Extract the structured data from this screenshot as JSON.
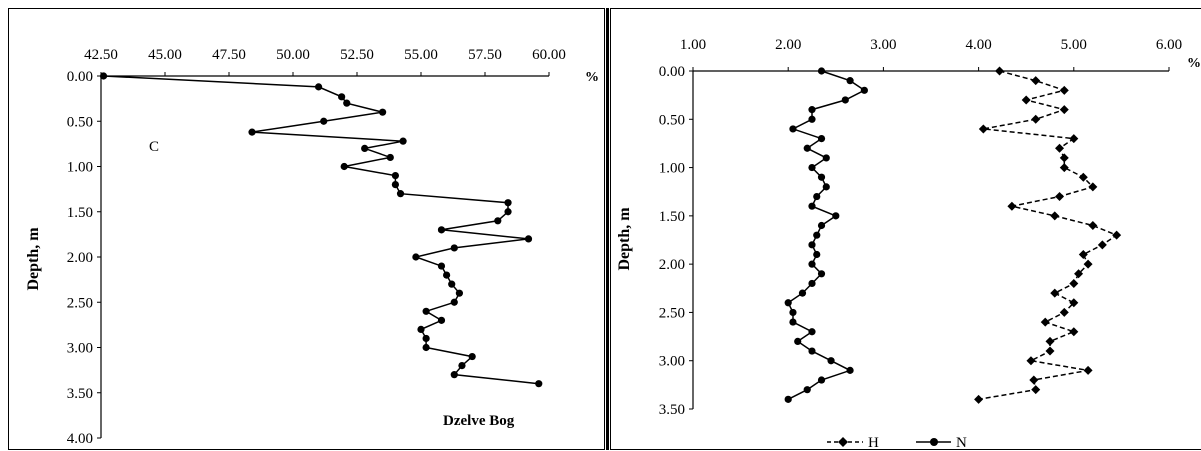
{
  "chart_data": [
    {
      "type": "line",
      "xlim": [
        42.5,
        60.0
      ],
      "ylim": [
        0,
        4.0
      ],
      "y_inverted": true,
      "x_ticks": [
        "42.50",
        "45.00",
        "47.50",
        "50.00",
        "52.50",
        "55.00",
        "57.50",
        "60.00"
      ],
      "y_ticks": [
        "0.00",
        "0.50",
        "1.00",
        "1.50",
        "2.00",
        "2.50",
        "3.00",
        "3.50",
        "4.00"
      ],
      "x_unit": "%",
      "ylabel": "Depth, m",
      "annotations": [
        "C",
        "Dzelve Bog"
      ],
      "series": [
        {
          "style": "solid",
          "marker": "circle",
          "points": [
            {
              "x": 42.6,
              "y": 0.0
            },
            {
              "x": 51.0,
              "y": 0.12
            },
            {
              "x": 51.9,
              "y": 0.23
            },
            {
              "x": 52.1,
              "y": 0.3
            },
            {
              "x": 53.5,
              "y": 0.4
            },
            {
              "x": 51.2,
              "y": 0.5
            },
            {
              "x": 48.4,
              "y": 0.62
            },
            {
              "x": 54.3,
              "y": 0.72
            },
            {
              "x": 52.8,
              "y": 0.8
            },
            {
              "x": 53.8,
              "y": 0.9
            },
            {
              "x": 52.0,
              "y": 1.0
            },
            {
              "x": 54.0,
              "y": 1.1
            },
            {
              "x": 54.0,
              "y": 1.2
            },
            {
              "x": 54.2,
              "y": 1.3
            },
            {
              "x": 58.4,
              "y": 1.4
            },
            {
              "x": 58.4,
              "y": 1.5
            },
            {
              "x": 58.0,
              "y": 1.6
            },
            {
              "x": 55.8,
              "y": 1.7
            },
            {
              "x": 59.2,
              "y": 1.8
            },
            {
              "x": 56.3,
              "y": 1.9
            },
            {
              "x": 54.8,
              "y": 2.0
            },
            {
              "x": 55.8,
              "y": 2.1
            },
            {
              "x": 56.0,
              "y": 2.2
            },
            {
              "x": 56.2,
              "y": 2.3
            },
            {
              "x": 56.5,
              "y": 2.4
            },
            {
              "x": 56.3,
              "y": 2.5
            },
            {
              "x": 55.2,
              "y": 2.6
            },
            {
              "x": 55.8,
              "y": 2.7
            },
            {
              "x": 55.0,
              "y": 2.8
            },
            {
              "x": 55.2,
              "y": 2.9
            },
            {
              "x": 55.2,
              "y": 3.0
            },
            {
              "x": 57.0,
              "y": 3.1
            },
            {
              "x": 56.6,
              "y": 3.2
            },
            {
              "x": 56.3,
              "y": 3.3
            },
            {
              "x": 59.6,
              "y": 3.4
            }
          ]
        }
      ]
    },
    {
      "type": "line",
      "xlim": [
        1.0,
        6.0
      ],
      "ylim": [
        0,
        3.5
      ],
      "y_inverted": true,
      "x_ticks": [
        "1.00",
        "2.00",
        "3.00",
        "4.00",
        "5.00",
        "6.00"
      ],
      "y_ticks": [
        "0.00",
        "0.50",
        "1.00",
        "1.50",
        "2.00",
        "2.50",
        "3.00",
        "3.50"
      ],
      "x_unit": "%",
      "ylabel": "Depth, m",
      "legend": "bottom",
      "series": [
        {
          "name": "H",
          "style": "dashed",
          "marker": "diamond",
          "points": [
            {
              "x": 4.22,
              "y": 0.0
            },
            {
              "x": 4.6,
              "y": 0.1
            },
            {
              "x": 4.9,
              "y": 0.2
            },
            {
              "x": 4.5,
              "y": 0.3
            },
            {
              "x": 4.9,
              "y": 0.4
            },
            {
              "x": 4.6,
              "y": 0.5
            },
            {
              "x": 4.05,
              "y": 0.6
            },
            {
              "x": 5.0,
              "y": 0.7
            },
            {
              "x": 4.85,
              "y": 0.8
            },
            {
              "x": 4.9,
              "y": 0.9
            },
            {
              "x": 4.9,
              "y": 1.0
            },
            {
              "x": 5.1,
              "y": 1.1
            },
            {
              "x": 5.2,
              "y": 1.2
            },
            {
              "x": 4.85,
              "y": 1.3
            },
            {
              "x": 4.35,
              "y": 1.4
            },
            {
              "x": 4.8,
              "y": 1.5
            },
            {
              "x": 5.2,
              "y": 1.6
            },
            {
              "x": 5.45,
              "y": 1.7
            },
            {
              "x": 5.3,
              "y": 1.8
            },
            {
              "x": 5.1,
              "y": 1.9
            },
            {
              "x": 5.15,
              "y": 2.0
            },
            {
              "x": 5.05,
              "y": 2.1
            },
            {
              "x": 5.0,
              "y": 2.2
            },
            {
              "x": 4.8,
              "y": 2.3
            },
            {
              "x": 5.0,
              "y": 2.4
            },
            {
              "x": 4.9,
              "y": 2.5
            },
            {
              "x": 4.7,
              "y": 2.6
            },
            {
              "x": 5.0,
              "y": 2.7
            },
            {
              "x": 4.75,
              "y": 2.8
            },
            {
              "x": 4.75,
              "y": 2.9
            },
            {
              "x": 4.55,
              "y": 3.0
            },
            {
              "x": 5.15,
              "y": 3.1
            },
            {
              "x": 4.58,
              "y": 3.2
            },
            {
              "x": 4.6,
              "y": 3.3
            },
            {
              "x": 4.0,
              "y": 3.4
            }
          ]
        },
        {
          "name": "N",
          "style": "solid",
          "marker": "circle",
          "points": [
            {
              "x": 2.35,
              "y": 0.0
            },
            {
              "x": 2.65,
              "y": 0.1
            },
            {
              "x": 2.8,
              "y": 0.2
            },
            {
              "x": 2.6,
              "y": 0.3
            },
            {
              "x": 2.25,
              "y": 0.4
            },
            {
              "x": 2.25,
              "y": 0.5
            },
            {
              "x": 2.05,
              "y": 0.6
            },
            {
              "x": 2.35,
              "y": 0.7
            },
            {
              "x": 2.2,
              "y": 0.8
            },
            {
              "x": 2.4,
              "y": 0.9
            },
            {
              "x": 2.25,
              "y": 1.0
            },
            {
              "x": 2.35,
              "y": 1.1
            },
            {
              "x": 2.4,
              "y": 1.2
            },
            {
              "x": 2.3,
              "y": 1.3
            },
            {
              "x": 2.25,
              "y": 1.4
            },
            {
              "x": 2.5,
              "y": 1.5
            },
            {
              "x": 2.35,
              "y": 1.6
            },
            {
              "x": 2.3,
              "y": 1.7
            },
            {
              "x": 2.25,
              "y": 1.8
            },
            {
              "x": 2.3,
              "y": 1.9
            },
            {
              "x": 2.25,
              "y": 2.0
            },
            {
              "x": 2.35,
              "y": 2.1
            },
            {
              "x": 2.25,
              "y": 2.2
            },
            {
              "x": 2.15,
              "y": 2.3
            },
            {
              "x": 2.0,
              "y": 2.4
            },
            {
              "x": 2.05,
              "y": 2.5
            },
            {
              "x": 2.05,
              "y": 2.6
            },
            {
              "x": 2.25,
              "y": 2.7
            },
            {
              "x": 2.1,
              "y": 2.8
            },
            {
              "x": 2.25,
              "y": 2.9
            },
            {
              "x": 2.45,
              "y": 3.0
            },
            {
              "x": 2.65,
              "y": 3.1
            },
            {
              "x": 2.35,
              "y": 3.2
            },
            {
              "x": 2.2,
              "y": 3.3
            },
            {
              "x": 2.0,
              "y": 3.4
            }
          ]
        }
      ]
    }
  ]
}
